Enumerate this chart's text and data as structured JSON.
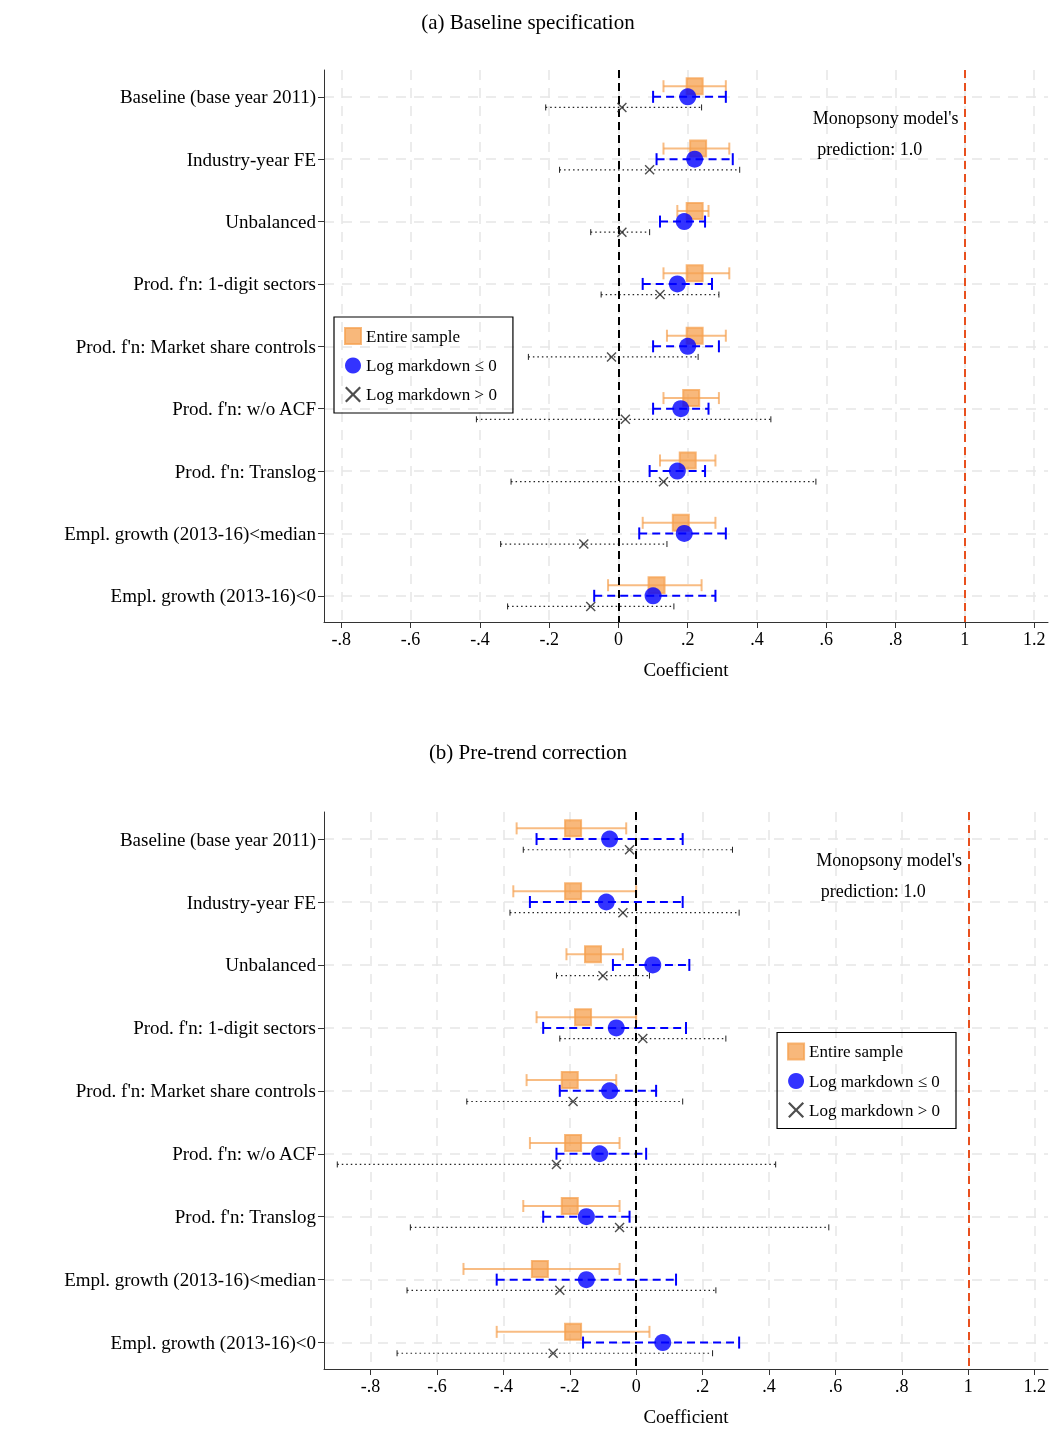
{
  "chart_data": [
    {
      "type": "scatter",
      "title": "(a) Baseline specification",
      "xlabel": "Coefficient",
      "categories": [
        "Baseline (base year 2011)",
        "Industry-year FE",
        "Unbalanced",
        "Prod. f'n: 1-digit sectors",
        "Prod. f'n: Market share controls",
        "Prod. f'n: w/o ACF",
        "Prod. f'n: Translog",
        "Empl. growth (2013-16)<median",
        "Empl. growth (2013-16)<0"
      ],
      "orientation": "horizontal",
      "series": [
        {
          "name": "Entire sample",
          "color": "#f5a04f",
          "marker": "square",
          "line_style": "solid",
          "values": [
            0.22,
            0.23,
            0.22,
            0.22,
            0.22,
            0.21,
            0.2,
            0.18,
            0.11
          ],
          "errors": [
            [
              0.13,
              0.31
            ],
            [
              0.13,
              0.32
            ],
            [
              0.17,
              0.26
            ],
            [
              0.13,
              0.32
            ],
            [
              0.14,
              0.31
            ],
            [
              0.13,
              0.29
            ],
            [
              0.12,
              0.28
            ],
            [
              0.07,
              0.28
            ],
            [
              -0.03,
              0.24
            ]
          ]
        },
        {
          "name": "Log markdown ≤ 0",
          "color": "#0000ff",
          "marker": "circle",
          "line_style": "dashed",
          "values": [
            0.2,
            0.22,
            0.19,
            0.17,
            0.2,
            0.18,
            0.17,
            0.19,
            0.1
          ],
          "errors": [
            [
              0.1,
              0.31
            ],
            [
              0.11,
              0.33
            ],
            [
              0.12,
              0.25
            ],
            [
              0.07,
              0.27
            ],
            [
              0.1,
              0.29
            ],
            [
              0.1,
              0.26
            ],
            [
              0.09,
              0.25
            ],
            [
              0.06,
              0.31
            ],
            [
              -0.07,
              0.28
            ]
          ]
        },
        {
          "name": "Log markdown > 0",
          "color": "#222222",
          "marker": "cross",
          "line_style": "dotted",
          "values": [
            0.01,
            0.09,
            0.01,
            0.12,
            -0.02,
            0.02,
            0.13,
            -0.1,
            -0.08
          ],
          "errors": [
            [
              -0.21,
              0.24
            ],
            [
              -0.17,
              0.35
            ],
            [
              -0.08,
              0.09
            ],
            [
              -0.05,
              0.29
            ],
            [
              -0.26,
              0.23
            ],
            [
              -0.41,
              0.44
            ],
            [
              -0.31,
              0.57
            ],
            [
              -0.34,
              0.14
            ],
            [
              -0.32,
              0.16
            ]
          ]
        }
      ],
      "xlim": [
        -0.85,
        1.24
      ],
      "xticks": [
        {
          "value": -0.8,
          "label": "-.8"
        },
        {
          "value": -0.6,
          "label": "-.6"
        },
        {
          "value": -0.4,
          "label": "-.4"
        },
        {
          "value": -0.2,
          "label": "-.2"
        },
        0,
        {
          "value": 0.2,
          "label": ".2"
        },
        {
          "value": 0.4,
          "label": ".4"
        },
        {
          "value": 0.6,
          "label": ".6"
        },
        {
          "value": 0.8,
          "label": ".8"
        },
        1,
        1.2
      ],
      "ref_lines": [
        {
          "axis": "x",
          "value": 0,
          "color": "#000000",
          "line_style": "dashed"
        },
        {
          "axis": "x",
          "value": 1,
          "color": "#e8501e",
          "line_style": "dashed",
          "label": "Monopsony model's prediction: 1.0"
        }
      ],
      "grid": true,
      "legend": "left"
    },
    {
      "type": "scatter",
      "title": "(b) Pre-trend correction",
      "xlabel": "Coefficient",
      "categories": [
        "Baseline (base year 2011)",
        "Industry-year FE",
        "Unbalanced",
        "Prod. f'n: 1-digit sectors",
        "Prod. f'n: Market share controls",
        "Prod. f'n: w/o ACF",
        "Prod. f'n: Translog",
        "Empl. growth (2013-16)<median",
        "Empl. growth (2013-16)<0"
      ],
      "orientation": "horizontal",
      "series": [
        {
          "name": "Entire sample",
          "color": "#f5a04f",
          "marker": "square",
          "line_style": "solid",
          "values": [
            -0.19,
            -0.19,
            -0.13,
            -0.16,
            -0.2,
            -0.19,
            -0.2,
            -0.29,
            -0.19
          ],
          "errors": [
            [
              -0.36,
              -0.03
            ],
            [
              -0.37,
              0
            ],
            [
              -0.21,
              -0.04
            ],
            [
              -0.3,
              0
            ],
            [
              -0.33,
              -0.06
            ],
            [
              -0.32,
              -0.05
            ],
            [
              -0.34,
              -0.05
            ],
            [
              -0.52,
              -0.05
            ],
            [
              -0.42,
              0.04
            ]
          ]
        },
        {
          "name": "Log markdown ≤ 0",
          "color": "#0000ff",
          "marker": "circle",
          "line_style": "dashed",
          "values": [
            -0.08,
            -0.09,
            0.05,
            -0.06,
            -0.08,
            -0.11,
            -0.15,
            -0.15,
            0.08
          ],
          "errors": [
            [
              -0.3,
              0.14
            ],
            [
              -0.32,
              0.14
            ],
            [
              -0.07,
              0.16
            ],
            [
              -0.28,
              0.15
            ],
            [
              -0.23,
              0.06
            ],
            [
              -0.24,
              0.03
            ],
            [
              -0.28,
              -0.02
            ],
            [
              -0.42,
              0.12
            ],
            [
              -0.16,
              0.31
            ]
          ]
        },
        {
          "name": "Log markdown > 0",
          "color": "#222222",
          "marker": "cross",
          "line_style": "dotted",
          "values": [
            -0.02,
            -0.04,
            -0.1,
            0.02,
            -0.19,
            -0.24,
            -0.05,
            -0.23,
            -0.25
          ],
          "errors": [
            [
              -0.34,
              0.29
            ],
            [
              -0.38,
              0.31
            ],
            [
              -0.24,
              0.04
            ],
            [
              -0.23,
              0.27
            ],
            [
              -0.51,
              0.14
            ],
            [
              -0.9,
              0.42
            ],
            [
              -0.68,
              0.58
            ],
            [
              -0.69,
              0.24
            ],
            [
              -0.72,
              0.23
            ]
          ]
        }
      ],
      "xlim": [
        -0.94,
        1.24
      ],
      "xticks": [
        {
          "value": -0.8,
          "label": "-.8"
        },
        {
          "value": -0.6,
          "label": "-.6"
        },
        {
          "value": -0.4,
          "label": "-.4"
        },
        {
          "value": -0.2,
          "label": "-.2"
        },
        0,
        {
          "value": 0.2,
          "label": ".2"
        },
        {
          "value": 0.4,
          "label": ".4"
        },
        {
          "value": 0.6,
          "label": ".6"
        },
        {
          "value": 0.8,
          "label": ".8"
        },
        1,
        1.2
      ],
      "ref_lines": [
        {
          "axis": "x",
          "value": 0,
          "color": "#000000",
          "line_style": "dashed"
        },
        {
          "axis": "x",
          "value": 1,
          "color": "#e8501e",
          "line_style": "dashed",
          "label": "Monopsony model's prediction: 1.0"
        }
      ],
      "grid": true,
      "legend": "right"
    }
  ]
}
